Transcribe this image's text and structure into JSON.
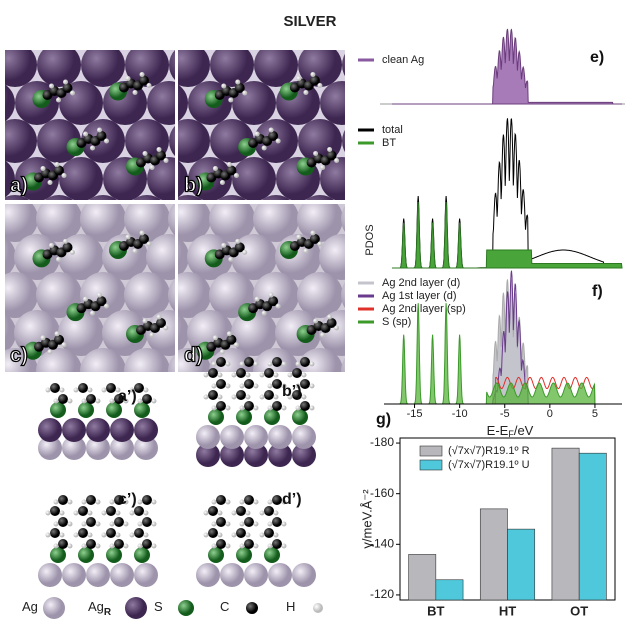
{
  "title": "SILVER",
  "panels": {
    "a": "a)",
    "b": "b)",
    "c": "c)",
    "d": "d)",
    "a_side": "a’)",
    "b_side": "b’)",
    "c_side": "c’)",
    "d_side": "d’)",
    "e": "e)",
    "f": "f)",
    "g": "g)"
  },
  "atom_legend": [
    {
      "label": "Ag"
    },
    {
      "label": "Ag",
      "sub": "R"
    },
    {
      "label": "S"
    },
    {
      "label": "C"
    },
    {
      "label": "H"
    }
  ],
  "pdos": {
    "y_label": "PDOS",
    "x_label": "E-E",
    "x_label_sub": "F",
    "x_label_end": "/eV",
    "xlim": [
      -17.5,
      8
    ],
    "xticks": [
      -15,
      -10,
      -5,
      0,
      5
    ],
    "legend_e": [
      "clean Ag"
    ],
    "legend_total": [
      "total",
      "BT"
    ],
    "legend_f": [
      "Ag 2nd layer (d)",
      "Ag 1st layer (d)",
      "Ag 2nd layer (sp)",
      "S (sp)"
    ]
  },
  "chart_data": {
    "type": "bar",
    "y_label": "γ/meV.Å⁻²",
    "categories": [
      "BT",
      "HT",
      "OT"
    ],
    "series": [
      {
        "name": "(√7x√7)R19.1º R",
        "color": "#b8b8bc",
        "values": [
          -136,
          -154,
          -178
        ]
      },
      {
        "name": "(√7x√7)R19.1º U",
        "color": "#4fc8dc",
        "values": [
          -126,
          -146,
          -176
        ]
      }
    ],
    "ylim": [
      -118,
      -182
    ],
    "yticks": [
      -120,
      -140,
      -160,
      -180
    ]
  }
}
